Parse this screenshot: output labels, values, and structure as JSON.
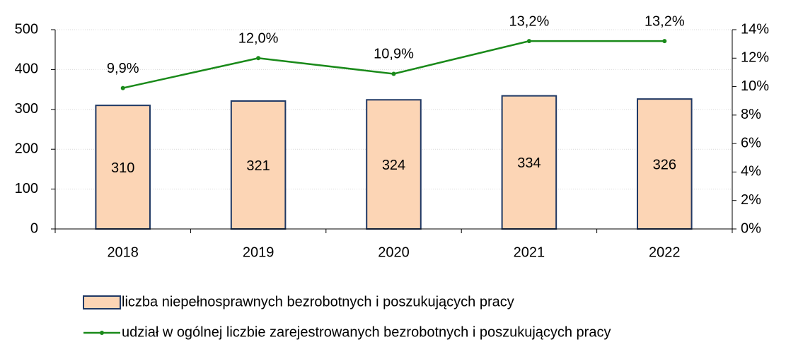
{
  "chart_data": {
    "type": "bar",
    "categories": [
      "2018",
      "2019",
      "2020",
      "2021",
      "2022"
    ],
    "series": [
      {
        "name": "liczba niepełnosprawnych bezrobotnych i poszukujących pracy",
        "type": "bar",
        "color": "#fcd5b5",
        "edge": "#1f3864",
        "values": [
          310,
          321,
          324,
          334,
          326
        ]
      },
      {
        "name": "udział w ogólnej liczbie zarejestrowanych bezrobotnych i poszukujących pracy",
        "type": "line",
        "axis": "y2",
        "color": "#1a8a1a",
        "values": [
          9.9,
          12.0,
          10.9,
          13.2,
          13.2
        ],
        "value_labels": [
          "9,9%",
          "12,0%",
          "10,9%",
          "13,2%",
          "13,2%"
        ]
      }
    ],
    "ylim": [
      0,
      500
    ],
    "yticks": [
      0,
      100,
      200,
      300,
      400,
      500
    ],
    "y2lim": [
      0,
      14
    ],
    "y2ticks": [
      {
        "value": 0,
        "label": "0%"
      },
      {
        "value": 2,
        "label": "2%"
      },
      {
        "value": 4,
        "label": "4%"
      },
      {
        "value": 6,
        "label": "6%"
      },
      {
        "value": 8,
        "label": "8%"
      },
      {
        "value": 10,
        "label": "10%"
      },
      {
        "value": 12,
        "label": "12%"
      },
      {
        "value": 14,
        "label": "14%"
      }
    ],
    "grid": true,
    "legend": "bottom"
  }
}
